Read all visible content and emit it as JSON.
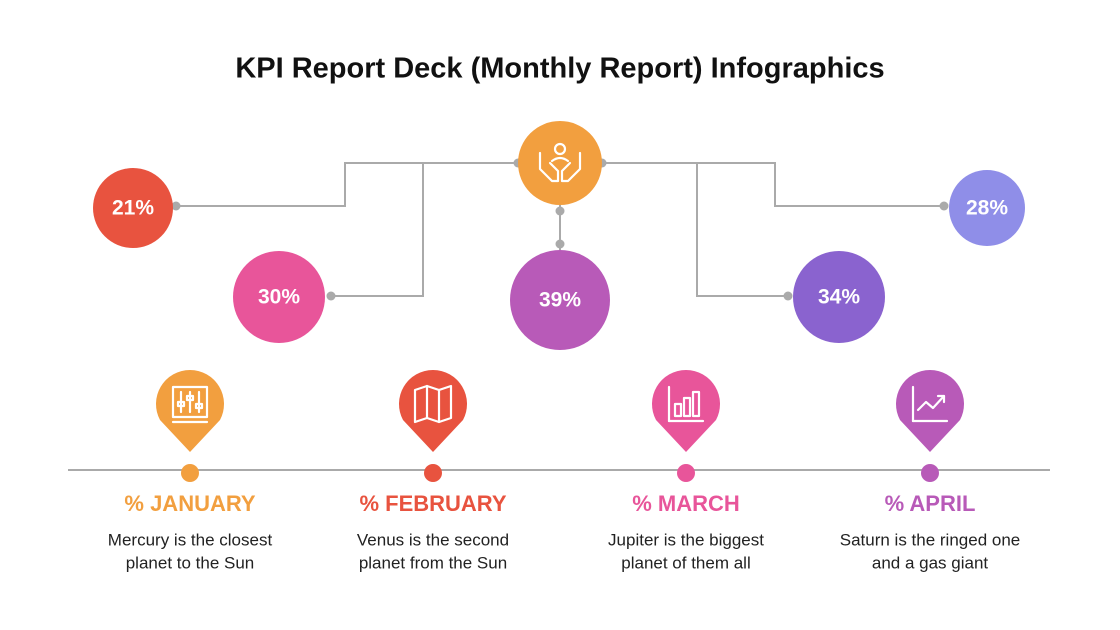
{
  "title": "KPI Report Deck (Monthly Report) Infographics",
  "bubbles": [
    {
      "label": "21%",
      "color": "#e8533f"
    },
    {
      "label": "30%",
      "color": "#e8559a"
    },
    {
      "label": "39%",
      "color": "#b85ab8"
    },
    {
      "label": "34%",
      "color": "#8a63cf"
    },
    {
      "label": "28%",
      "color": "#8f8ee8"
    }
  ],
  "months": [
    {
      "title": "% JANUARY",
      "description": [
        "Mercury is the closest",
        "planet to the Sun"
      ],
      "color": "#f29f3f"
    },
    {
      "title": "% FEBRUARY",
      "description": [
        "Venus is the second",
        "planet from the Sun"
      ],
      "color": "#e8533f"
    },
    {
      "title": "% MARCH",
      "description": [
        "Jupiter is the biggest",
        "planet of them all"
      ],
      "color": "#e8559a"
    },
    {
      "title": "% APRIL",
      "description": [
        "Saturn is the ringed one",
        "and a gas giant"
      ],
      "color": "#b85ab8"
    }
  ]
}
